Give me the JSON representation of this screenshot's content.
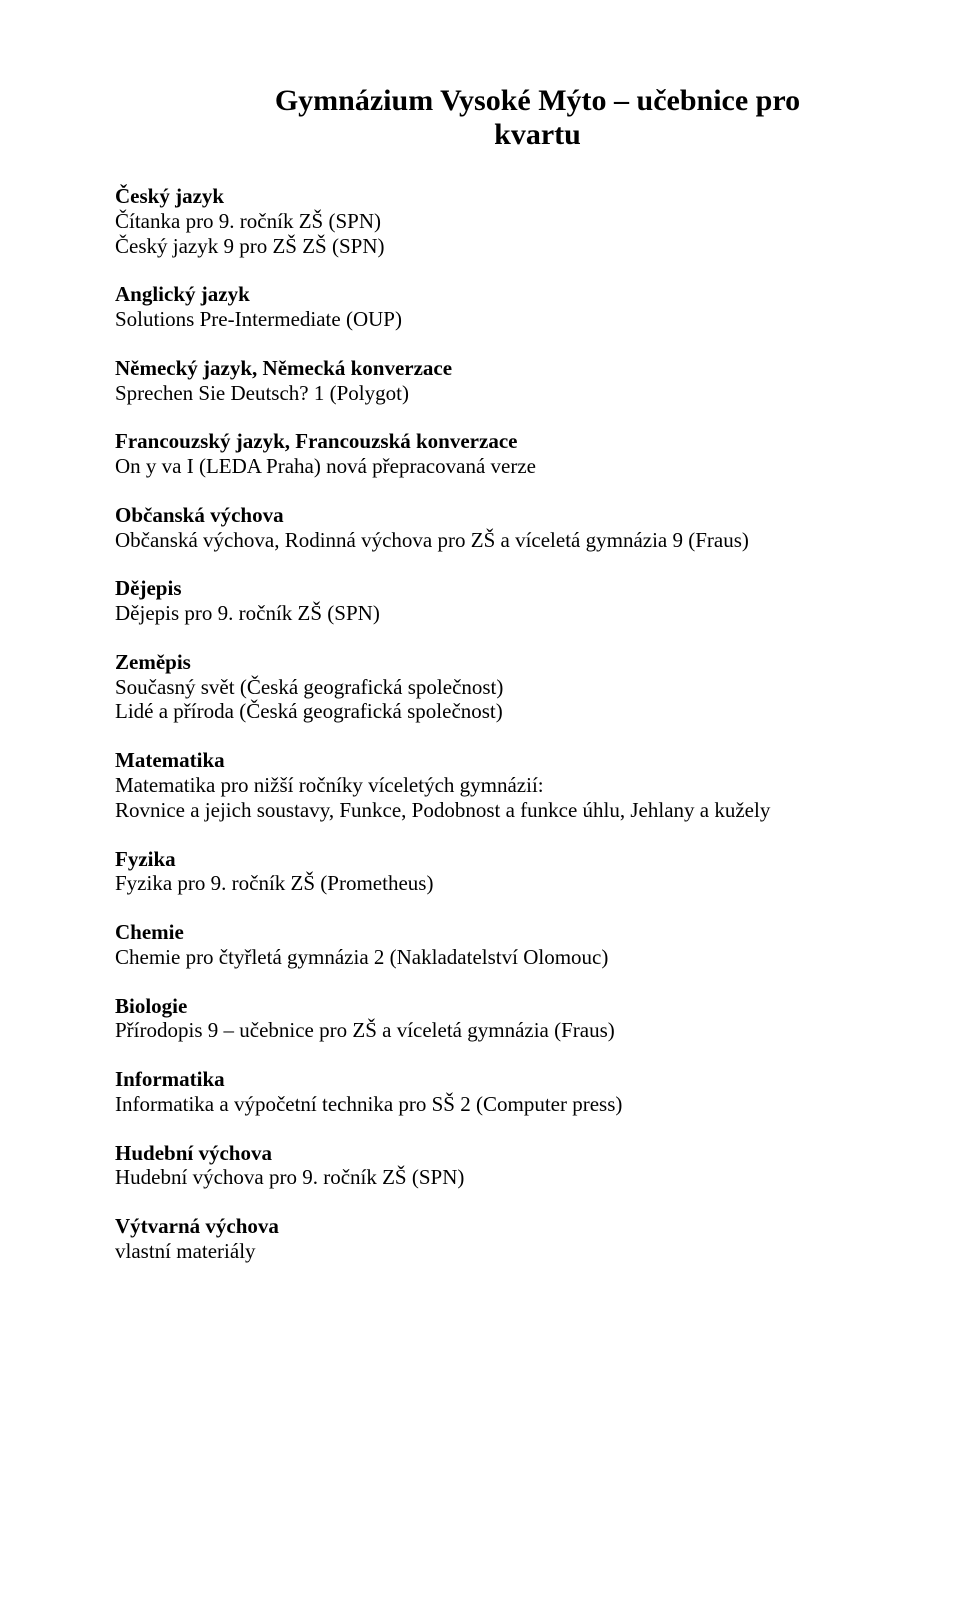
{
  "title": "Gymnázium Vysoké Mýto – učebnice pro kvartu",
  "sections": [
    {
      "heading": "Český jazyk",
      "lines": [
        "Čítanka pro 9. ročník ZŠ (SPN)",
        "Český jazyk 9 pro ZŠ ZŠ (SPN)"
      ]
    },
    {
      "heading": "Anglický jazyk",
      "lines": [
        "Solutions Pre-Intermediate (OUP)"
      ]
    },
    {
      "heading": "Německý jazyk, Německá konverzace",
      "lines": [
        "Sprechen Sie Deutsch? 1 (Polygot)"
      ]
    },
    {
      "heading": "Francouzský jazyk, Francouzská konverzace",
      "lines": [
        "On y va I (LEDA Praha) nová přepracovaná verze"
      ]
    },
    {
      "heading": "Občanská výchova",
      "lines": [
        "Občanská výchova, Rodinná výchova pro ZŠ a víceletá gymnázia 9 (Fraus)"
      ]
    },
    {
      "heading": "Dějepis",
      "lines": [
        "Dějepis pro 9. ročník ZŠ (SPN)"
      ]
    },
    {
      "heading": "Zeměpis",
      "lines": [
        "Současný svět (Česká geografická společnost)",
        "Lidé a příroda (Česká geografická společnost)"
      ]
    },
    {
      "heading": "Matematika",
      "lines": [
        "Matematika pro nižší ročníky víceletých gymnázií:",
        "Rovnice a jejich soustavy, Funkce, Podobnost a funkce úhlu, Jehlany a kužely"
      ]
    },
    {
      "heading": "Fyzika",
      "lines": [
        "Fyzika pro 9. ročník ZŠ (Prometheus)"
      ]
    },
    {
      "heading": "Chemie",
      "lines": [
        "Chemie pro čtyřletá gymnázia 2 (Nakladatelství Olomouc)"
      ]
    },
    {
      "heading": "Biologie",
      "lines": [
        "Přírodopis 9 – učebnice pro ZŠ a víceletá gymnázia (Fraus)"
      ]
    },
    {
      "heading": "Informatika",
      "lines": [
        "Informatika a výpočetní technika pro SŠ 2 (Computer press)"
      ]
    },
    {
      "heading": "Hudební výchova",
      "lines": [
        "Hudební výchova pro 9. ročník ZŠ (SPN)"
      ]
    },
    {
      "heading": "Výtvarná výchova",
      "lines": [
        "vlastní materiály"
      ]
    }
  ]
}
